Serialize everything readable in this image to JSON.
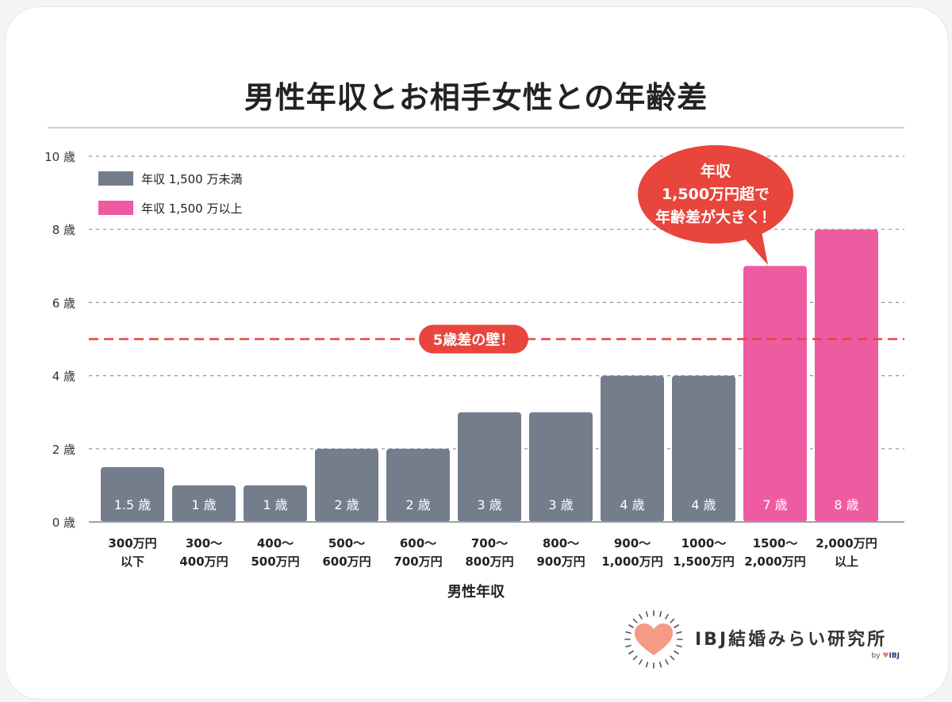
{
  "title": "男性年収とお相手女性との年齢差",
  "chart_data": {
    "type": "bar",
    "xlabel": "男性年収",
    "ylabel": "",
    "ylim": [
      0,
      10
    ],
    "yticks": [
      0,
      2,
      4,
      6,
      8,
      10
    ],
    "ytick_labels": [
      "0 歳",
      "2 歳",
      "4 歳",
      "6 歳",
      "8 歳",
      "10 歳"
    ],
    "grid": true,
    "legend_position": "top-left",
    "legend": [
      {
        "label": "年収 1,500 万未満",
        "color": "#747d8c"
      },
      {
        "label": "年収 1,500 万以上",
        "color": "#ef5ba1"
      }
    ],
    "bars": [
      {
        "category": [
          "300万円",
          "以下"
        ],
        "value": 1.5,
        "label": "1.5 歳",
        "group": 0
      },
      {
        "category": [
          "300〜",
          "400万円"
        ],
        "value": 1,
        "label": "1 歳",
        "group": 0
      },
      {
        "category": [
          "400〜",
          "500万円"
        ],
        "value": 1,
        "label": "1 歳",
        "group": 0
      },
      {
        "category": [
          "500〜",
          "600万円"
        ],
        "value": 2,
        "label": "2 歳",
        "group": 0
      },
      {
        "category": [
          "600〜",
          "700万円"
        ],
        "value": 2,
        "label": "2 歳",
        "group": 0
      },
      {
        "category": [
          "700〜",
          "800万円"
        ],
        "value": 3,
        "label": "3 歳",
        "group": 0
      },
      {
        "category": [
          "800〜",
          "900万円"
        ],
        "value": 3,
        "label": "3 歳",
        "group": 0
      },
      {
        "category": [
          "900〜",
          "1,000万円"
        ],
        "value": 4,
        "label": "4 歳",
        "group": 0
      },
      {
        "category": [
          "1000〜",
          "1,500万円"
        ],
        "value": 4,
        "label": "4 歳",
        "group": 0
      },
      {
        "category": [
          "1500〜",
          "2,000万円"
        ],
        "value": 7,
        "label": "7 歳",
        "group": 1
      },
      {
        "category": [
          "2,000万円",
          "以上"
        ],
        "value": 8,
        "label": "8 歳",
        "group": 1
      }
    ],
    "reference_line": {
      "value": 5,
      "label": "5歳差の壁！",
      "color": "#e8453c"
    },
    "callout": {
      "lines": [
        "年収",
        "1,500万円超で",
        "年齢差が大きく！"
      ],
      "color": "#e8453c"
    }
  },
  "logo": {
    "name": "IBJ結婚みらい研究所",
    "by_prefix": "by",
    "by_brand": "IBJ"
  }
}
